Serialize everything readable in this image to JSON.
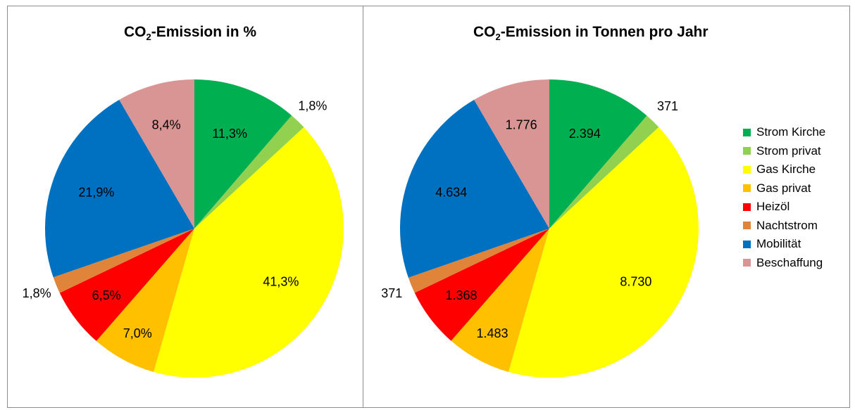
{
  "charts": {
    "left": {
      "title_main": "CO",
      "title_sub": "2",
      "title_rest": "-Emission in %"
    },
    "right": {
      "title_main": "CO",
      "title_sub": "2",
      "title_rest": "-Emission in Tonnen pro Jahr"
    }
  },
  "colors": [
    "#00b050",
    "#92d050",
    "#ffff00",
    "#ffc000",
    "#ff0000",
    "#e0843a",
    "#0070c0",
    "#d99594"
  ],
  "chart_data": [
    {
      "type": "pie",
      "title": "CO2-Emission in %",
      "categories": [
        "Strom Kirche",
        "Strom privat",
        "Gas Kirche",
        "Gas privat",
        "Heizöl",
        "Nachtstrom",
        "Mobilität",
        "Beschaffung"
      ],
      "values": [
        11.3,
        1.8,
        41.3,
        7.0,
        6.5,
        1.8,
        21.9,
        8.4
      ],
      "labels": [
        "11,3%",
        "1,8%",
        "41,3%",
        "7,0%",
        "6,5%",
        "1,8%",
        "21,9%",
        "8,4%"
      ]
    },
    {
      "type": "pie",
      "title": "CO2-Emission in Tonnen pro Jahr",
      "categories": [
        "Strom Kirche",
        "Strom privat",
        "Gas Kirche",
        "Gas privat",
        "Heizöl",
        "Nachtstrom",
        "Mobilität",
        "Beschaffung"
      ],
      "values": [
        2394,
        371,
        8730,
        1483,
        1368,
        371,
        4634,
        1776
      ],
      "labels": [
        "2.394",
        "371",
        "8.730",
        "1.483",
        "1.368",
        "371",
        "4.634",
        "1.776"
      ],
      "legend": {
        "position": "right",
        "entries": [
          "Strom Kirche",
          "Strom privat",
          "Gas Kirche",
          "Gas privat",
          "Heizöl",
          "Nachtstrom",
          "Mobilität",
          "Beschaffung"
        ]
      }
    }
  ]
}
